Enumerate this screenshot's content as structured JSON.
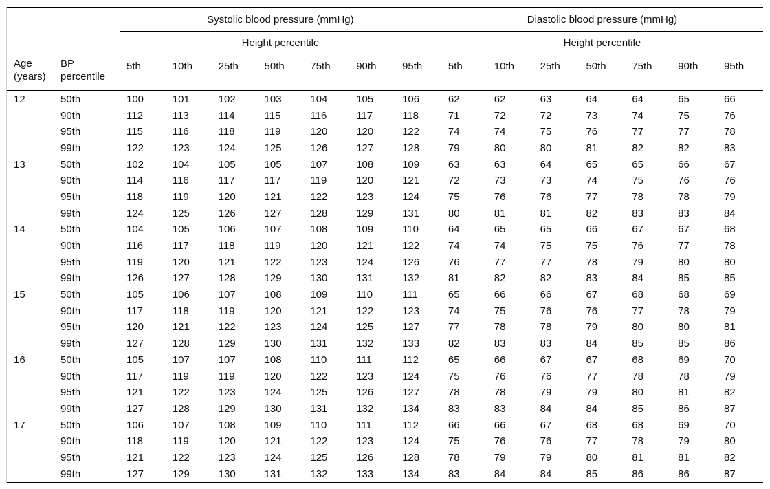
{
  "table": {
    "columns": {
      "age": {
        "line1": "Age",
        "line2": "(years)"
      },
      "bp": {
        "line1": "BP",
        "line2": "percentile"
      }
    },
    "groups": [
      {
        "label": "Systolic blood pressure (mmHg)",
        "subheader": "Height percentile"
      },
      {
        "label": "Diastolic blood pressure (mmHg)",
        "subheader": "Height percentile"
      }
    ],
    "height_percentiles": [
      "5th",
      "10th",
      "25th",
      "50th",
      "75th",
      "90th",
      "95th"
    ],
    "rows": [
      {
        "age": "12",
        "bp": "50th",
        "systolic": [
          100,
          101,
          102,
          103,
          104,
          105,
          106
        ],
        "diastolic": [
          62,
          62,
          63,
          64,
          64,
          65,
          66
        ]
      },
      {
        "age": "",
        "bp": "90th",
        "systolic": [
          112,
          113,
          114,
          115,
          116,
          117,
          118
        ],
        "diastolic": [
          71,
          72,
          72,
          73,
          74,
          75,
          76
        ]
      },
      {
        "age": "",
        "bp": "95th",
        "systolic": [
          115,
          116,
          118,
          119,
          120,
          120,
          122
        ],
        "diastolic": [
          74,
          74,
          75,
          76,
          77,
          77,
          78
        ]
      },
      {
        "age": "",
        "bp": "99th",
        "systolic": [
          122,
          123,
          124,
          125,
          126,
          127,
          128
        ],
        "diastolic": [
          79,
          80,
          80,
          81,
          82,
          82,
          83
        ]
      },
      {
        "age": "13",
        "bp": "50th",
        "systolic": [
          102,
          104,
          105,
          105,
          107,
          108,
          109
        ],
        "diastolic": [
          63,
          63,
          64,
          65,
          65,
          66,
          67
        ]
      },
      {
        "age": "",
        "bp": "90th",
        "systolic": [
          114,
          116,
          117,
          117,
          119,
          120,
          121
        ],
        "diastolic": [
          72,
          73,
          73,
          74,
          75,
          76,
          76
        ]
      },
      {
        "age": "",
        "bp": "95th",
        "systolic": [
          118,
          119,
          120,
          121,
          122,
          123,
          124
        ],
        "diastolic": [
          75,
          76,
          76,
          77,
          78,
          78,
          79
        ]
      },
      {
        "age": "",
        "bp": "99th",
        "systolic": [
          124,
          125,
          126,
          127,
          128,
          129,
          131
        ],
        "diastolic": [
          80,
          81,
          81,
          82,
          83,
          83,
          84
        ]
      },
      {
        "age": "14",
        "bp": "50th",
        "systolic": [
          104,
          105,
          106,
          107,
          108,
          109,
          110
        ],
        "diastolic": [
          64,
          65,
          65,
          66,
          67,
          67,
          68
        ]
      },
      {
        "age": "",
        "bp": "90th",
        "systolic": [
          116,
          117,
          118,
          119,
          120,
          121,
          122
        ],
        "diastolic": [
          74,
          74,
          75,
          75,
          76,
          77,
          78
        ]
      },
      {
        "age": "",
        "bp": "95th",
        "systolic": [
          119,
          120,
          121,
          122,
          123,
          124,
          126
        ],
        "diastolic": [
          76,
          77,
          77,
          78,
          79,
          80,
          80
        ]
      },
      {
        "age": "",
        "bp": "99th",
        "systolic": [
          126,
          127,
          128,
          129,
          130,
          131,
          132
        ],
        "diastolic": [
          81,
          82,
          82,
          83,
          84,
          85,
          85
        ]
      },
      {
        "age": "15",
        "bp": "50th",
        "systolic": [
          105,
          106,
          107,
          108,
          109,
          110,
          111
        ],
        "diastolic": [
          65,
          66,
          66,
          67,
          68,
          68,
          69
        ]
      },
      {
        "age": "",
        "bp": "90th",
        "systolic": [
          117,
          118,
          119,
          120,
          121,
          122,
          123
        ],
        "diastolic": [
          74,
          75,
          76,
          76,
          77,
          78,
          79
        ]
      },
      {
        "age": "",
        "bp": "95th",
        "systolic": [
          120,
          121,
          122,
          123,
          124,
          125,
          127
        ],
        "diastolic": [
          77,
          78,
          78,
          79,
          80,
          80,
          81
        ]
      },
      {
        "age": "",
        "bp": "99th",
        "systolic": [
          127,
          128,
          129,
          130,
          131,
          132,
          133
        ],
        "diastolic": [
          82,
          83,
          83,
          84,
          85,
          85,
          86
        ]
      },
      {
        "age": "16",
        "bp": "50th",
        "systolic": [
          105,
          107,
          107,
          108,
          110,
          111,
          112
        ],
        "diastolic": [
          65,
          66,
          67,
          67,
          68,
          69,
          70
        ]
      },
      {
        "age": "",
        "bp": "90th",
        "systolic": [
          117,
          119,
          119,
          120,
          122,
          123,
          124
        ],
        "diastolic": [
          75,
          76,
          76,
          77,
          78,
          78,
          79
        ]
      },
      {
        "age": "",
        "bp": "95th",
        "systolic": [
          121,
          122,
          123,
          124,
          125,
          126,
          127
        ],
        "diastolic": [
          78,
          78,
          79,
          79,
          80,
          81,
          82
        ]
      },
      {
        "age": "",
        "bp": "99th",
        "systolic": [
          127,
          128,
          129,
          130,
          131,
          132,
          134
        ],
        "diastolic": [
          83,
          83,
          84,
          84,
          85,
          86,
          87
        ]
      },
      {
        "age": "17",
        "bp": "50th",
        "systolic": [
          106,
          107,
          108,
          109,
          110,
          111,
          112
        ],
        "diastolic": [
          66,
          66,
          67,
          68,
          68,
          69,
          70
        ]
      },
      {
        "age": "",
        "bp": "90th",
        "systolic": [
          118,
          119,
          120,
          121,
          122,
          123,
          124
        ],
        "diastolic": [
          75,
          76,
          76,
          77,
          78,
          79,
          80
        ]
      },
      {
        "age": "",
        "bp": "95th",
        "systolic": [
          121,
          122,
          123,
          124,
          125,
          126,
          128
        ],
        "diastolic": [
          78,
          79,
          79,
          80,
          81,
          81,
          82
        ]
      },
      {
        "age": "",
        "bp": "99th",
        "systolic": [
          127,
          129,
          130,
          131,
          132,
          133,
          134
        ],
        "diastolic": [
          83,
          84,
          84,
          85,
          86,
          86,
          87
        ]
      }
    ]
  }
}
